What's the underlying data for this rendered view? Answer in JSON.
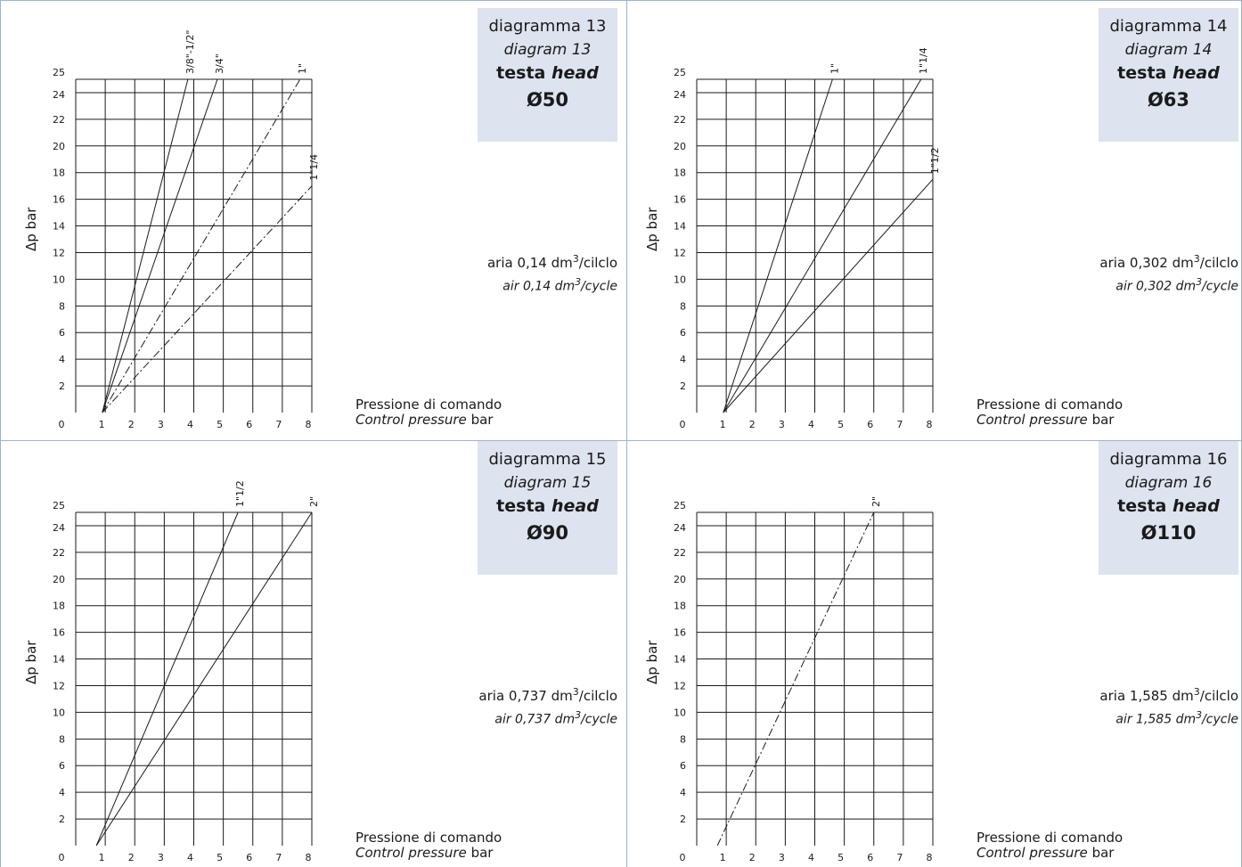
{
  "panels": [
    {
      "title_it": "diagramma 13",
      "title_en": "diagram 13",
      "head_it": "testa",
      "head_en": "head",
      "diameter": "Ø50",
      "air_it_pre": "aria 0,14 dm",
      "air_it_post": "/cilclo",
      "air_en_pre": "air 0,14 dm",
      "air_en_post": "/cycle",
      "air_exp": "3",
      "ylabel": "Δp bar",
      "xlabel_it": "Pressione di comando",
      "xlabel_en_it": "Control pressure",
      "xlabel_en_unit": "bar"
    },
    {
      "title_it": "diagramma 14",
      "title_en": "diagram 14",
      "head_it": "testa",
      "head_en": "head",
      "diameter": "Ø63",
      "air_it_pre": "aria 0,302 dm",
      "air_it_post": "/cilclo",
      "air_en_pre": "air 0,302 dm",
      "air_en_post": "/cycle",
      "air_exp": "3",
      "ylabel": "Δp bar",
      "xlabel_it": "Pressione di comando",
      "xlabel_en_it": "Control pressure",
      "xlabel_en_unit": "bar"
    },
    {
      "title_it": "diagramma 15",
      "title_en": "diagram 15",
      "head_it": "testa",
      "head_en": "head",
      "diameter": "Ø90",
      "air_it_pre": "aria 0,737 dm",
      "air_it_post": "/cilclo",
      "air_en_pre": "air 0,737 dm",
      "air_en_post": "/cycle",
      "air_exp": "3",
      "ylabel": "Δp bar",
      "xlabel_it": "Pressione di comando",
      "xlabel_en_it": "Control pressure",
      "xlabel_en_unit": "bar"
    },
    {
      "title_it": "diagramma 16",
      "title_en": "diagram 16",
      "head_it": "testa",
      "head_en": "head",
      "diameter": "Ø110",
      "air_it_pre": "aria 1,585 dm",
      "air_it_post": "/cilclo",
      "air_en_pre": "air 1,585 dm",
      "air_en_post": "/cycle",
      "air_exp": "3",
      "ylabel": "Δp bar",
      "xlabel_it": "Pressione di comando",
      "xlabel_en_it": "Control pressure",
      "xlabel_en_unit": "bar"
    }
  ],
  "chart_data": [
    {
      "type": "line",
      "title": "diagramma 13",
      "xlabel": "Pressione di comando Control pressure bar",
      "ylabel": "Δp bar",
      "xlim": [
        0,
        8
      ],
      "ylim": [
        0,
        25
      ],
      "x_ticks": [
        0,
        1,
        2,
        3,
        4,
        5,
        6,
        7,
        8
      ],
      "y_ticks": [
        0,
        2,
        4,
        6,
        8,
        10,
        12,
        14,
        16,
        18,
        20,
        22,
        24,
        25
      ],
      "grid": true,
      "series": [
        {
          "name": "3/8\"-1/2\"",
          "style": "solid",
          "x": [
            0.9,
            3.8
          ],
          "y": [
            0,
            25
          ]
        },
        {
          "name": "3/4\"",
          "style": "solid",
          "x": [
            0.9,
            4.8
          ],
          "y": [
            0,
            25
          ]
        },
        {
          "name": "1\"",
          "style": "dashdot",
          "x": [
            0.9,
            7.6
          ],
          "y": [
            0,
            25
          ]
        },
        {
          "name": "1\"1/4",
          "style": "dashdot",
          "x": [
            0.9,
            8.0
          ],
          "y": [
            0,
            17
          ]
        }
      ]
    },
    {
      "type": "line",
      "title": "diagramma 14",
      "xlabel": "Pressione di comando Control pressure bar",
      "ylabel": "Δp bar",
      "xlim": [
        0,
        8
      ],
      "ylim": [
        0,
        25
      ],
      "x_ticks": [
        0,
        1,
        2,
        3,
        4,
        5,
        6,
        7,
        8
      ],
      "y_ticks": [
        0,
        2,
        4,
        6,
        8,
        10,
        12,
        14,
        16,
        18,
        20,
        22,
        24,
        25
      ],
      "grid": true,
      "series": [
        {
          "name": "1\"",
          "style": "solid",
          "x": [
            0.9,
            4.6
          ],
          "y": [
            0,
            25
          ]
        },
        {
          "name": "1\"1/4",
          "style": "solid",
          "x": [
            0.9,
            7.6
          ],
          "y": [
            0,
            25
          ]
        },
        {
          "name": "1\"1/2",
          "style": "solid",
          "x": [
            0.9,
            8.0
          ],
          "y": [
            0,
            17.5
          ]
        }
      ]
    },
    {
      "type": "line",
      "title": "diagramma 15",
      "xlabel": "Pressione di comando Control pressure bar",
      "ylabel": "Δp bar",
      "xlim": [
        0,
        8
      ],
      "ylim": [
        0,
        25
      ],
      "x_ticks": [
        0,
        1,
        2,
        3,
        4,
        5,
        6,
        7,
        8
      ],
      "y_ticks": [
        0,
        2,
        4,
        6,
        8,
        10,
        12,
        14,
        16,
        18,
        20,
        22,
        24,
        25
      ],
      "grid": true,
      "series": [
        {
          "name": "1\"1/2",
          "style": "solid",
          "x": [
            0.7,
            5.5
          ],
          "y": [
            0,
            25
          ]
        },
        {
          "name": "2\"",
          "style": "solid",
          "x": [
            0.7,
            8.0
          ],
          "y": [
            0,
            25
          ]
        }
      ]
    },
    {
      "type": "line",
      "title": "diagramma 16",
      "xlabel": "Pressione di comando Control pressure bar",
      "ylabel": "Δp bar",
      "xlim": [
        0,
        8
      ],
      "ylim": [
        0,
        25
      ],
      "x_ticks": [
        0,
        1,
        2,
        3,
        4,
        5,
        6,
        7,
        8
      ],
      "y_ticks": [
        0,
        2,
        4,
        6,
        8,
        10,
        12,
        14,
        16,
        18,
        20,
        22,
        24,
        25
      ],
      "grid": true,
      "series": [
        {
          "name": "2\"",
          "style": "dashdot",
          "x": [
            0.7,
            6.0
          ],
          "y": [
            0,
            25
          ]
        }
      ]
    }
  ]
}
